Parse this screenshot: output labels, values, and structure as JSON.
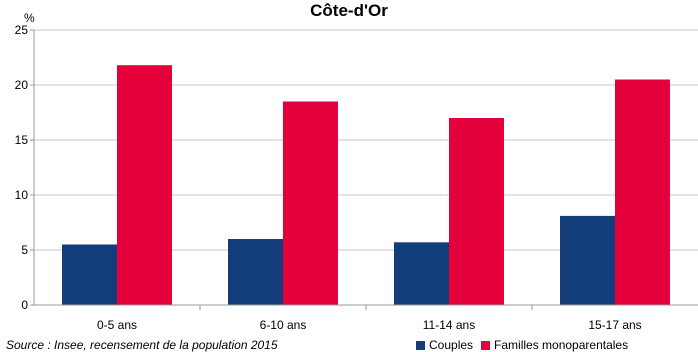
{
  "chart_data": {
    "type": "bar",
    "title": "Côte-d'Or",
    "ylabel": "%",
    "xlabel": "",
    "categories": [
      "0-5 ans",
      "6-10 ans",
      "11-14 ans",
      "15-17 ans"
    ],
    "series": [
      {
        "name": "Couples",
        "color": "#123d7a",
        "values": [
          5.5,
          6.0,
          5.7,
          8.1
        ]
      },
      {
        "name": "Familles monoparentales",
        "color": "#e4003a",
        "values": [
          21.8,
          18.5,
          17.0,
          20.5
        ]
      }
    ],
    "ylim": [
      0,
      25
    ],
    "yticks": [
      0,
      5,
      10,
      15,
      20,
      25
    ],
    "grid": true,
    "legend": "bottom-right"
  },
  "source": "Source : Insee, recensement de la population 2015"
}
